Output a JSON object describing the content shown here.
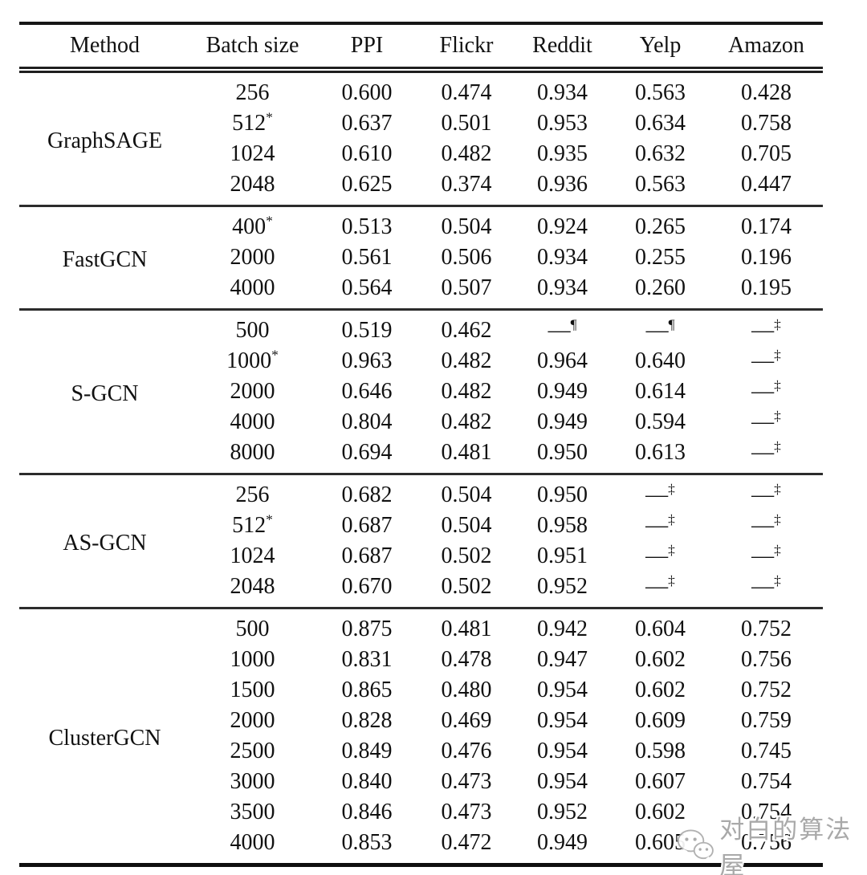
{
  "table": {
    "columns": [
      "Method",
      "Batch size",
      "PPI",
      "Flickr",
      "Reddit",
      "Yelp",
      "Amazon"
    ],
    "footnote_markers": [
      "*",
      "¶",
      "‡"
    ],
    "groups": [
      {
        "method": "GraphSAGE",
        "rows": [
          {
            "batch": "256",
            "values": [
              "0.600",
              "0.474",
              "0.934",
              "0.563",
              "0.428"
            ]
          },
          {
            "batch": "512^*",
            "values": [
              "0.637",
              "0.501",
              "0.953",
              "0.634",
              "0.758"
            ]
          },
          {
            "batch": "1024",
            "values": [
              "0.610",
              "0.482",
              "0.935",
              "0.632",
              "0.705"
            ]
          },
          {
            "batch": "2048",
            "values": [
              "0.625",
              "0.374",
              "0.936",
              "0.563",
              "0.447"
            ]
          }
        ]
      },
      {
        "method": "FastGCN",
        "rows": [
          {
            "batch": "400^*",
            "values": [
              "0.513",
              "0.504",
              "0.924",
              "0.265",
              "0.174"
            ]
          },
          {
            "batch": "2000",
            "values": [
              "0.561",
              "0.506",
              "0.934",
              "0.255",
              "0.196"
            ]
          },
          {
            "batch": "4000",
            "values": [
              "0.564",
              "0.507",
              "0.934",
              "0.260",
              "0.195"
            ]
          }
        ]
      },
      {
        "method": "S-GCN",
        "rows": [
          {
            "batch": "500",
            "values": [
              "0.519",
              "0.462",
              "—^¶",
              "—^¶",
              "—^‡"
            ]
          },
          {
            "batch": "1000^*",
            "values": [
              "0.963",
              "0.482",
              "0.964",
              "0.640",
              "—^‡"
            ]
          },
          {
            "batch": "2000",
            "values": [
              "0.646",
              "0.482",
              "0.949",
              "0.614",
              "—^‡"
            ]
          },
          {
            "batch": "4000",
            "values": [
              "0.804",
              "0.482",
              "0.949",
              "0.594",
              "—^‡"
            ]
          },
          {
            "batch": "8000",
            "values": [
              "0.694",
              "0.481",
              "0.950",
              "0.613",
              "—^‡"
            ]
          }
        ]
      },
      {
        "method": "AS-GCN",
        "rows": [
          {
            "batch": "256",
            "values": [
              "0.682",
              "0.504",
              "0.950",
              "—^‡",
              "—^‡"
            ]
          },
          {
            "batch": "512^*",
            "values": [
              "0.687",
              "0.504",
              "0.958",
              "—^‡",
              "—^‡"
            ]
          },
          {
            "batch": "1024",
            "values": [
              "0.687",
              "0.502",
              "0.951",
              "—^‡",
              "—^‡"
            ]
          },
          {
            "batch": "2048",
            "values": [
              "0.670",
              "0.502",
              "0.952",
              "—^‡",
              "—^‡"
            ]
          }
        ]
      },
      {
        "method": "ClusterGCN",
        "rows": [
          {
            "batch": "500",
            "values": [
              "0.875",
              "0.481",
              "0.942",
              "0.604",
              "0.752"
            ]
          },
          {
            "batch": "1000",
            "values": [
              "0.831",
              "0.478",
              "0.947",
              "0.602",
              "0.756"
            ]
          },
          {
            "batch": "1500",
            "values": [
              "0.865",
              "0.480",
              "0.954",
              "0.602",
              "0.752"
            ]
          },
          {
            "batch": "2000",
            "values": [
              "0.828",
              "0.469",
              "0.954",
              "0.609",
              "0.759"
            ]
          },
          {
            "batch": "2500",
            "values": [
              "0.849",
              "0.476",
              "0.954",
              "0.598",
              "0.745"
            ]
          },
          {
            "batch": "3000",
            "values": [
              "0.840",
              "0.473",
              "0.954",
              "0.607",
              "0.754"
            ]
          },
          {
            "batch": "3500",
            "values": [
              "0.846",
              "0.473",
              "0.952",
              "0.602",
              "0.754"
            ]
          },
          {
            "batch": "4000",
            "values": [
              "0.853",
              "0.472",
              "0.949",
              "0.605",
              "0.756"
            ]
          }
        ]
      }
    ]
  },
  "watermark": {
    "text": "对白的算法屋",
    "icon": "wechat-icon",
    "color": "#a9a9a9"
  }
}
